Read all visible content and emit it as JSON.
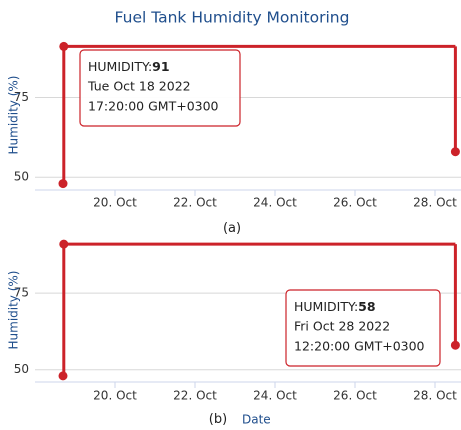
{
  "chart_data": [
    {
      "type": "line",
      "step": true,
      "title": "Fuel Tank Humidity Monitoring",
      "y_label": "Humidity (%)",
      "caption": "(a)",
      "x": [
        18.7,
        18.72,
        28.51
      ],
      "series": [
        {
          "name": "Humidity",
          "color": "#cc2229",
          "values": [
            48,
            91,
            58
          ]
        }
      ],
      "xlim": [
        18,
        28.65
      ],
      "xticks": [
        {
          "value": 20,
          "label": "20. Oct"
        },
        {
          "value": 22,
          "label": "22. Oct"
        },
        {
          "value": 24,
          "label": "24. Oct"
        },
        {
          "value": 26,
          "label": "26. Oct"
        },
        {
          "value": 28,
          "label": "28. Oct"
        }
      ],
      "ylim": [
        46,
        93
      ],
      "yticks": [
        50,
        75
      ],
      "grid": true,
      "tooltip": {
        "point": 1,
        "label": "HUMIDITY:",
        "date": "Tue Oct 18 2022",
        "time": "17:20:00 GMT+0300"
      }
    },
    {
      "type": "line",
      "step": true,
      "y_label": "Humidity (%)",
      "caption": "(b)",
      "x_label": "Date",
      "x": [
        18.7,
        18.72,
        28.51
      ],
      "series": [
        {
          "name": "Humidity",
          "color": "#cc2229",
          "values": [
            48,
            91,
            58
          ]
        }
      ],
      "xlim": [
        18,
        28.65
      ],
      "xticks": [
        {
          "value": 20,
          "label": "20. Oct"
        },
        {
          "value": 22,
          "label": "22. Oct"
        },
        {
          "value": 24,
          "label": "24. Oct"
        },
        {
          "value": 26,
          "label": "26. Oct"
        },
        {
          "value": 28,
          "label": "28. Oct"
        }
      ],
      "ylim": [
        46,
        93
      ],
      "yticks": [
        50,
        75
      ],
      "grid": true,
      "tooltip": {
        "point": 2,
        "label": "HUMIDITY:",
        "date": "Fri Oct 28 2022",
        "time": "12:20:00 GMT+0300"
      }
    }
  ]
}
